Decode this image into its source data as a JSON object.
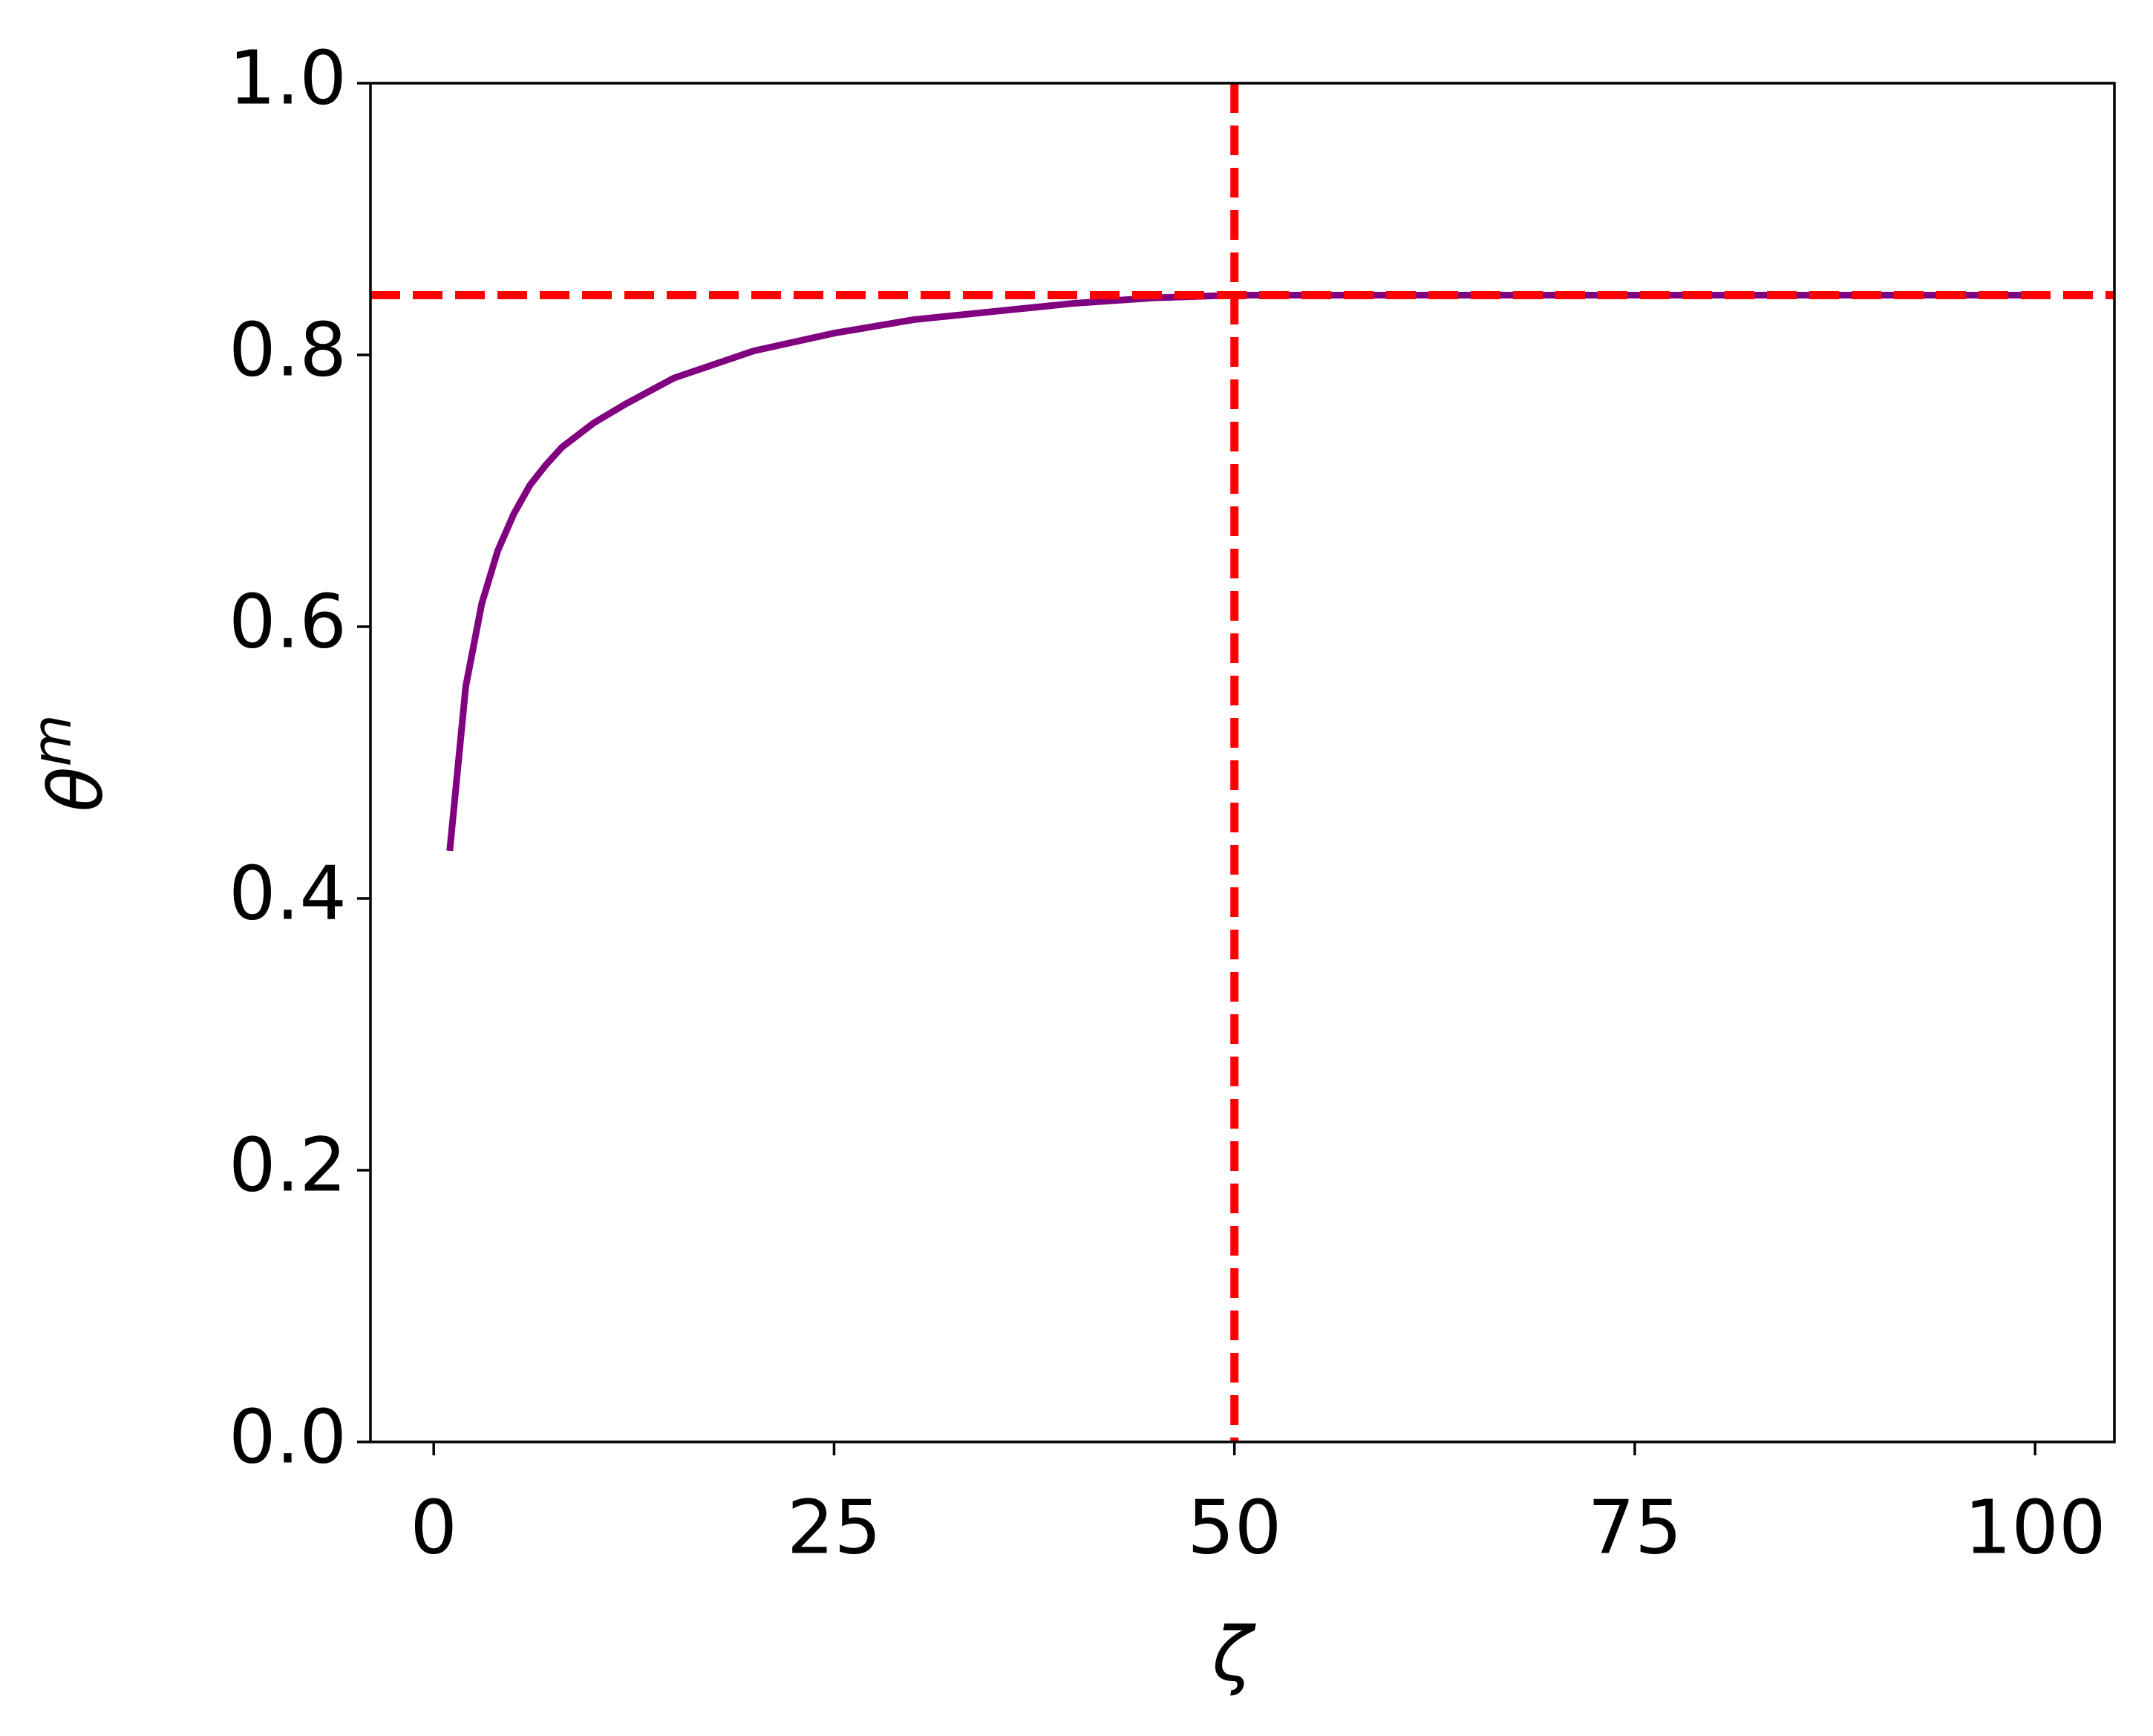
{
  "chart_data": {
    "type": "line",
    "xlabel": "ζ",
    "ylabel": "θ",
    "ylabel_sup": "m",
    "x": [
      1,
      2,
      3,
      4,
      5,
      6,
      7,
      8,
      10,
      12,
      15,
      20,
      25,
      30,
      35,
      40,
      45,
      50,
      60,
      70,
      80,
      90,
      100
    ],
    "series": [
      {
        "color": "#800080",
        "values": [
          0.435,
          0.556,
          0.617,
          0.656,
          0.683,
          0.704,
          0.719,
          0.732,
          0.75,
          0.764,
          0.783,
          0.803,
          0.816,
          0.826,
          0.832,
          0.838,
          0.842,
          0.844,
          0.844,
          0.844,
          0.844,
          0.844,
          0.844
        ]
      }
    ],
    "hlines": [
      {
        "value": 0.844,
        "color": "#ff0000"
      }
    ],
    "vlines": [
      {
        "value": 50,
        "color": "#ff0000"
      }
    ],
    "xlim": [
      -3.95,
      104.95
    ],
    "ylim": [
      0,
      1
    ],
    "xticks": [
      0,
      25,
      50,
      75,
      100
    ],
    "yticks": [
      {
        "value": 0,
        "label": "0.0"
      },
      0.2,
      0.4,
      0.6,
      0.8,
      {
        "value": 1,
        "label": "1.0"
      }
    ],
    "grid": false
  }
}
